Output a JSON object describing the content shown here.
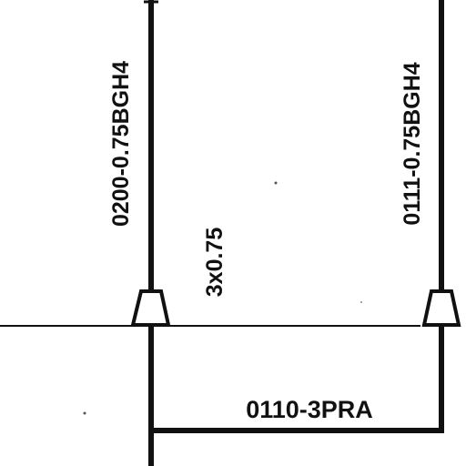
{
  "diagram": {
    "wires": {
      "left_vertical": {
        "label": "0200-0.75BGH4"
      },
      "right_vertical": {
        "label": "0111-0.75BGH4"
      },
      "connector_spec": {
        "label": "3x0.75"
      },
      "bottom_link": {
        "label": "0110-3PRA"
      }
    },
    "colors": {
      "ink": "#111111",
      "background": "#ffffff"
    }
  }
}
